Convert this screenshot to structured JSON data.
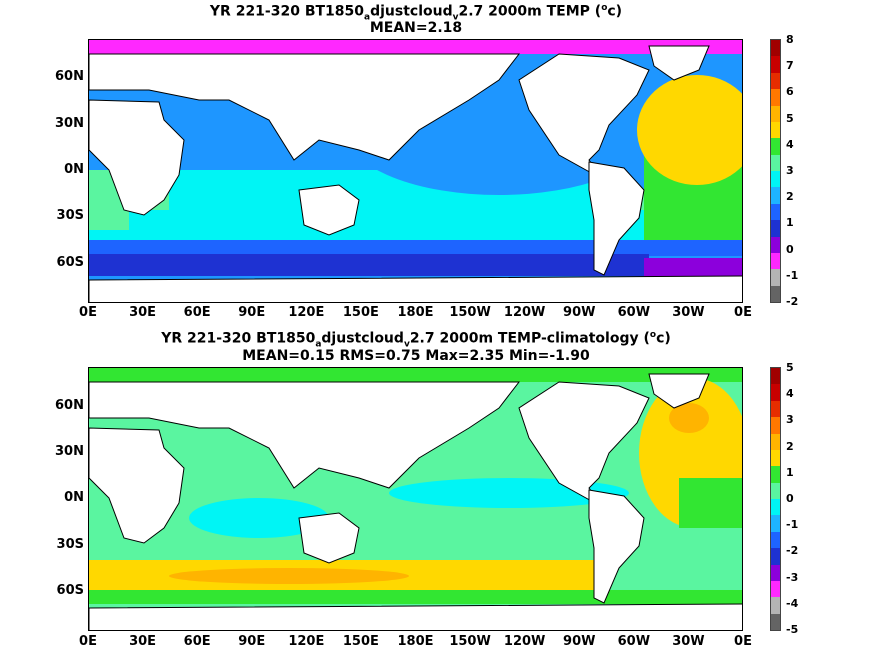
{
  "panels": [
    {
      "title_prefix": "YR 221-320 BT1850",
      "title_sub1": "a",
      "title_mid": "djustcloud",
      "title_sub2": "v",
      "title_tail": "2.7 2000m TEMP (",
      "title_sup": "o",
      "title_end": "c)",
      "stats": "MEAN=2.18",
      "colorbar_labels": [
        "8",
        "7",
        "6",
        "5",
        "4",
        "3",
        "2",
        "1",
        "0",
        "-1",
        "-2"
      ],
      "colorbar_colors": [
        "#a00000",
        "#c80000",
        "#e62d00",
        "#ff7800",
        "#ffb400",
        "#ffd800",
        "#32e632",
        "#5af5a0",
        "#00f5f5",
        "#1eb4ff",
        "#1e64ff",
        "#1e32d2",
        "#8c00dc",
        "#ff28ff",
        "#b4b4b4",
        "#646464"
      ]
    },
    {
      "title_prefix": "YR 221-320 BT1850",
      "title_sub1": "a",
      "title_mid": "djustcloud",
      "title_sub2": "v",
      "title_tail": "2.7 2000m TEMP-climatology (",
      "title_sup": "o",
      "title_end": "c)",
      "stats": "MEAN=0.15   RMS=0.75   Max=2.35   Min=-1.90",
      "colorbar_labels": [
        "5",
        "4",
        "3",
        "2",
        "1",
        "0",
        "-1",
        "-2",
        "-3",
        "-4",
        "-5"
      ],
      "colorbar_colors": [
        "#a00000",
        "#c80000",
        "#e62d00",
        "#ff7800",
        "#ffb400",
        "#ffd800",
        "#32e632",
        "#5af5a0",
        "#00f5f5",
        "#1eb4ff",
        "#1e64ff",
        "#1e32d2",
        "#8c00dc",
        "#ff28ff",
        "#b4b4b4",
        "#646464"
      ]
    }
  ],
  "lat_labels": [
    "60N",
    "30N",
    "0N",
    "30S",
    "60S"
  ],
  "lon_labels": [
    "0E",
    "30E",
    "60E",
    "90E",
    "120E",
    "150E",
    "180E",
    "150W",
    "120W",
    "90W",
    "60W",
    "30W",
    "0E"
  ]
}
